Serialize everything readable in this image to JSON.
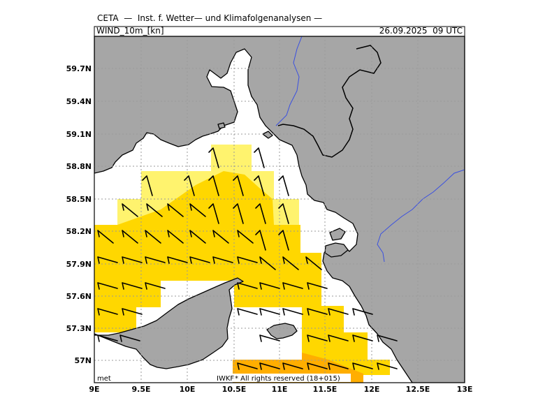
{
  "header": {
    "title": "CETA  —  Inst. f. Wetter— und Klimafolgenanalysen —",
    "parameter": "WIND_10m_[kn]",
    "valid_time": "26.09.2025  09 UTC"
  },
  "axes": {
    "lon_labels": [
      "9E",
      "9.5E",
      "10E",
      "10.5E",
      "11E",
      "11.5E",
      "12E",
      "12.5E",
      "13E"
    ],
    "lat_labels": [
      "59.7N",
      "59.4N",
      "59.1N",
      "58.8N",
      "58.5N",
      "58.2N",
      "57.9N",
      "57.6N",
      "57.3N",
      "57N"
    ]
  },
  "footer": {
    "left_mark": "met",
    "credit": "IWKF",
    "rights": "* All rights reserved (18+015)"
  },
  "colors": {
    "land": "#a6a6a6",
    "sea": "#ffffff",
    "river": "#3a50e0",
    "shade_light": "#fff36e",
    "shade_mid": "#ffd700",
    "shade_strong": "#ffae00"
  }
}
